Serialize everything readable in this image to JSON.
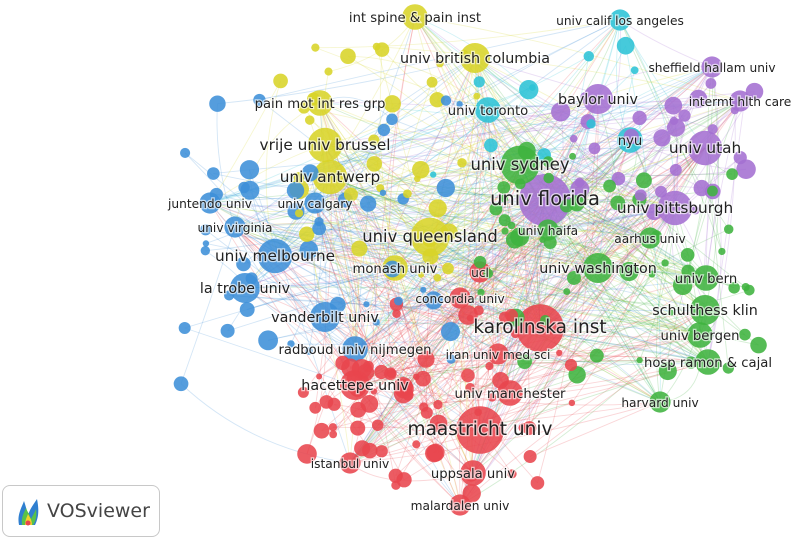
{
  "software": {
    "name": "VOSviewer"
  },
  "clusters": [
    {
      "id": "red",
      "color": "#e8454d"
    },
    {
      "id": "green",
      "color": "#3fb33f"
    },
    {
      "id": "blue",
      "color": "#3d8fd8"
    },
    {
      "id": "yellow",
      "color": "#d8d428"
    },
    {
      "id": "purple",
      "color": "#a46fd2"
    },
    {
      "id": "cyan",
      "color": "#2cc3d6"
    }
  ],
  "nodes": [
    {
      "label": "univ florida",
      "cluster": "purple",
      "weight": 10
    },
    {
      "label": "univ sydney",
      "cluster": "green",
      "weight": 7
    },
    {
      "label": "karolinska inst",
      "cluster": "red",
      "weight": 9
    },
    {
      "label": "maastricht univ",
      "cluster": "red",
      "weight": 9
    },
    {
      "label": "univ queensland",
      "cluster": "yellow",
      "weight": 7
    },
    {
      "label": "univ utah",
      "cluster": "purple",
      "weight": 6
    },
    {
      "label": "univ pittsburgh",
      "cluster": "purple",
      "weight": 6
    },
    {
      "label": "univ antwerp",
      "cluster": "yellow",
      "weight": 6
    },
    {
      "label": "vrije univ brussel",
      "cluster": "yellow",
      "weight": 6
    },
    {
      "label": "univ melbourne",
      "cluster": "blue",
      "weight": 6
    },
    {
      "label": "la trobe univ",
      "cluster": "blue",
      "weight": 5
    },
    {
      "label": "baylor univ",
      "cluster": "purple",
      "weight": 5
    },
    {
      "label": "univ british columbia",
      "cluster": "yellow",
      "weight": 5
    },
    {
      "label": "univ washington",
      "cluster": "green",
      "weight": 5
    },
    {
      "label": "schulthess klin",
      "cluster": "green",
      "weight": 5
    },
    {
      "label": "vanderbilt univ",
      "cluster": "blue",
      "weight": 5
    },
    {
      "label": "hacettepe univ",
      "cluster": "red",
      "weight": 5
    },
    {
      "label": "radboud univ nijmegen",
      "cluster": "blue",
      "weight": 4
    },
    {
      "label": "monash univ",
      "cluster": "yellow",
      "weight": 4
    },
    {
      "label": "univ toronto",
      "cluster": "cyan",
      "weight": 4
    },
    {
      "label": "uppsala univ",
      "cluster": "red",
      "weight": 4
    },
    {
      "label": "hosp ramon & cajal",
      "cluster": "green",
      "weight": 4
    },
    {
      "label": "univ bergen",
      "cluster": "green",
      "weight": 4
    },
    {
      "label": "univ bern",
      "cluster": "green",
      "weight": 4
    },
    {
      "label": "univ manchester",
      "cluster": "red",
      "weight": 4
    },
    {
      "label": "nyu",
      "cluster": "cyan",
      "weight": 4
    },
    {
      "label": "pain mot int res grp",
      "cluster": "yellow",
      "weight": 4
    },
    {
      "label": "int spine & pain inst",
      "cluster": "yellow",
      "weight": 4
    },
    {
      "label": "univ calif los angeles",
      "cluster": "cyan",
      "weight": 3
    },
    {
      "label": "sheffield hallam univ",
      "cluster": "purple",
      "weight": 3
    },
    {
      "label": "intermt hlth care",
      "cluster": "purple",
      "weight": 3
    },
    {
      "label": "juntendo univ",
      "cluster": "blue",
      "weight": 3
    },
    {
      "label": "univ calgary",
      "cluster": "blue",
      "weight": 3
    },
    {
      "label": "univ virginia",
      "cluster": "blue",
      "weight": 3
    },
    {
      "label": "univ haifa",
      "cluster": "green",
      "weight": 3
    },
    {
      "label": "aarhus univ",
      "cluster": "green",
      "weight": 3
    },
    {
      "label": "ucl",
      "cluster": "red",
      "weight": 3
    },
    {
      "label": "concordia univ",
      "cluster": "red",
      "weight": 3
    },
    {
      "label": "iran univ med sci",
      "cluster": "red",
      "weight": 3
    },
    {
      "label": "harvard univ",
      "cluster": "green",
      "weight": 3
    },
    {
      "label": "istanbul univ",
      "cluster": "red",
      "weight": 3
    },
    {
      "label": "malardalen univ",
      "cluster": "red",
      "weight": 3
    }
  ]
}
